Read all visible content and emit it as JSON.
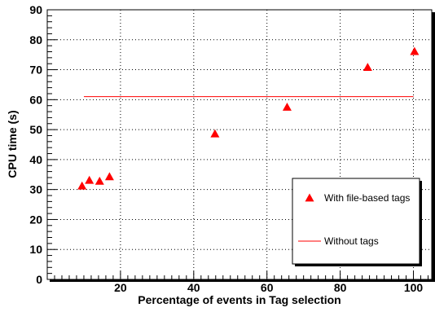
{
  "chart_data": {
    "type": "scatter",
    "title": "",
    "xlabel": "Percentage of events in Tag selection",
    "ylabel": "CPU time (s)",
    "xlim": [
      0,
      105
    ],
    "ylim": [
      0,
      90
    ],
    "xticks": [
      20,
      40,
      60,
      80,
      100
    ],
    "yticks": [
      0,
      10,
      20,
      30,
      40,
      50,
      60,
      70,
      80,
      90
    ],
    "grid": true,
    "legend_position": "bottom-right",
    "series": [
      {
        "name": "With file-based tags",
        "type": "scatter",
        "marker": "triangle",
        "color": "#ff0000",
        "x": [
          9.5,
          11.5,
          14.3,
          17,
          45.8,
          65.5,
          87.5,
          100.3
        ],
        "y": [
          31.2,
          33.1,
          32.8,
          34.3,
          48.6,
          57.5,
          70.8,
          76.1
        ]
      },
      {
        "name": "Without tags",
        "type": "line",
        "color": "#ff0000",
        "x": [
          10,
          100
        ],
        "y": [
          61,
          61
        ]
      }
    ]
  }
}
